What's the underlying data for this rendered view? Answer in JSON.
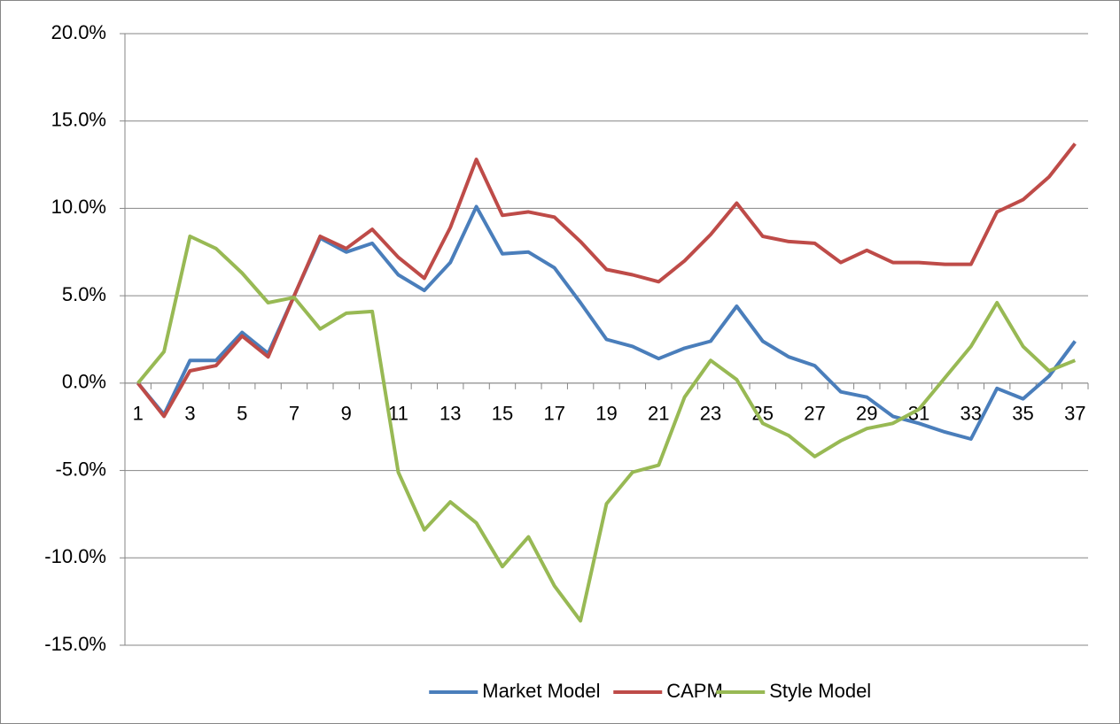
{
  "chart_data": {
    "type": "line",
    "categories": [
      "1",
      null,
      "3",
      null,
      "5",
      null,
      "7",
      null,
      "9",
      null,
      "11",
      null,
      "13",
      null,
      "15",
      null,
      "17",
      null,
      "19",
      null,
      "21",
      null,
      "23",
      null,
      "25",
      null,
      "27",
      null,
      "29",
      null,
      "31",
      null,
      "33",
      null,
      "35",
      null,
      "37"
    ],
    "series": [
      {
        "name": "Market Model",
        "color": "#4a7ebb",
        "values": [
          0,
          -1.8,
          1.3,
          1.3,
          2.9,
          1.7,
          5.0,
          8.3,
          7.5,
          8.0,
          6.2,
          5.3,
          6.9,
          10.1,
          7.4,
          7.5,
          6.6,
          4.6,
          2.5,
          2.1,
          1.4,
          2.0,
          2.4,
          4.4,
          2.4,
          1.5,
          1.0,
          -0.5,
          -0.8,
          -1.9,
          -2.3,
          -2.8,
          -3.2,
          -0.3,
          -0.9,
          0.4,
          2.4
        ]
      },
      {
        "name": "CAPM",
        "color": "#be4b48",
        "values": [
          0,
          -1.9,
          0.7,
          1.0,
          2.7,
          1.5,
          5.0,
          8.4,
          7.7,
          8.8,
          7.2,
          6.0,
          8.9,
          12.8,
          9.6,
          9.8,
          9.5,
          8.1,
          6.5,
          6.2,
          5.8,
          7.0,
          8.5,
          10.3,
          8.4,
          8.1,
          8.0,
          6.9,
          7.6,
          6.9,
          6.9,
          6.8,
          6.8,
          9.8,
          10.5,
          11.8,
          13.7
        ]
      },
      {
        "name": "Style Model",
        "color": "#98b954",
        "values": [
          0,
          1.8,
          8.4,
          7.7,
          6.3,
          4.6,
          4.9,
          3.1,
          4.0,
          4.1,
          -5.1,
          -8.4,
          -6.8,
          -8.0,
          -10.5,
          -8.8,
          -11.6,
          -13.6,
          -6.9,
          -5.1,
          -4.7,
          -0.8,
          1.3,
          0.2,
          -2.3,
          -3.0,
          -4.2,
          -3.3,
          -2.6,
          -2.3,
          -1.5,
          0.3,
          2.1,
          4.6,
          2.1,
          0.7,
          1.3
        ]
      }
    ],
    "ylim": [
      -15,
      20
    ],
    "yticks": [
      {
        "value": -15,
        "label": "-15.0%"
      },
      {
        "value": -10,
        "label": "-10.0%"
      },
      {
        "value": -5,
        "label": "-5.0%"
      },
      {
        "value": 0,
        "label": "0.0%"
      },
      {
        "value": 5,
        "label": "5.0%"
      },
      {
        "value": 10,
        "label": "10.0%"
      },
      {
        "value": 15,
        "label": "15.0%"
      },
      {
        "value": 20,
        "label": "20.0%"
      }
    ],
    "grid": true,
    "legend": "bottom"
  }
}
